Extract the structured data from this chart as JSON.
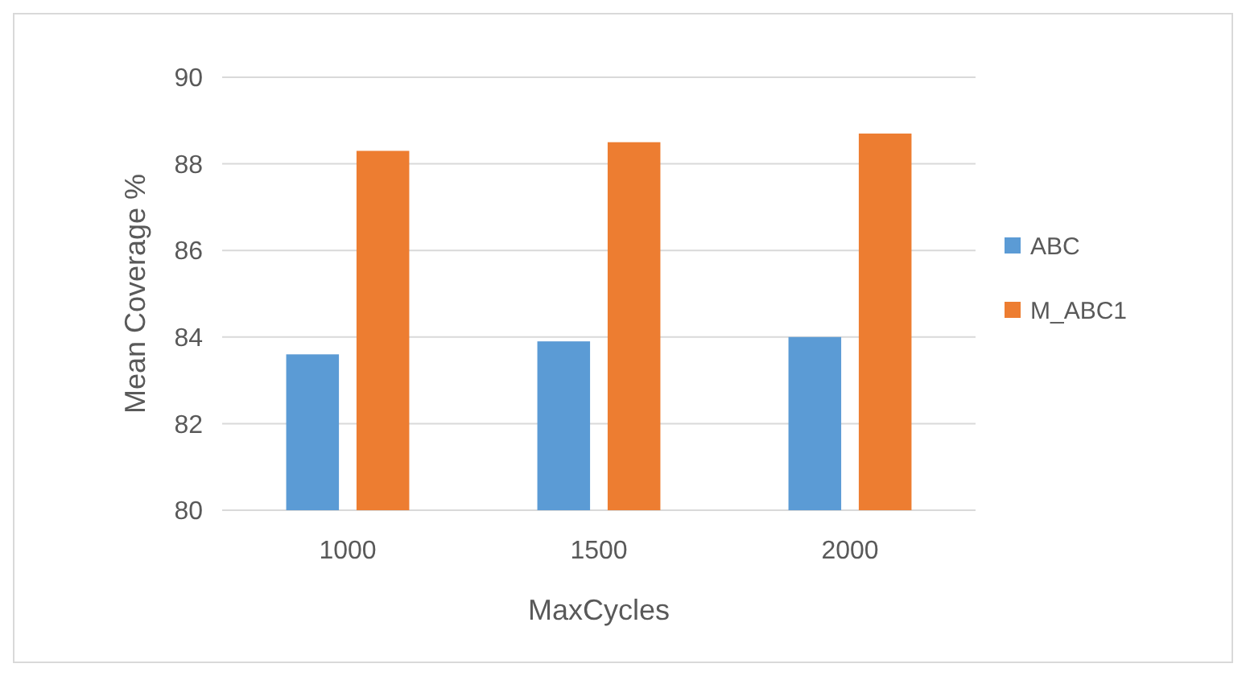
{
  "chart_data": {
    "type": "bar",
    "xlabel": "MaxCycles",
    "ylabel": "Mean Coverage %",
    "categories": [
      "1000",
      "1500",
      "2000"
    ],
    "series": [
      {
        "name": "ABC",
        "color": "#5b9bd5",
        "values": [
          83.6,
          83.9,
          84.0
        ]
      },
      {
        "name": "M_ABC1",
        "color": "#ed7d31",
        "values": [
          88.3,
          88.5,
          88.7
        ]
      }
    ],
    "ylim": [
      80,
      90
    ],
    "yticks": [
      80,
      82,
      84,
      86,
      88,
      90
    ],
    "grid": "y",
    "legend": "right"
  }
}
